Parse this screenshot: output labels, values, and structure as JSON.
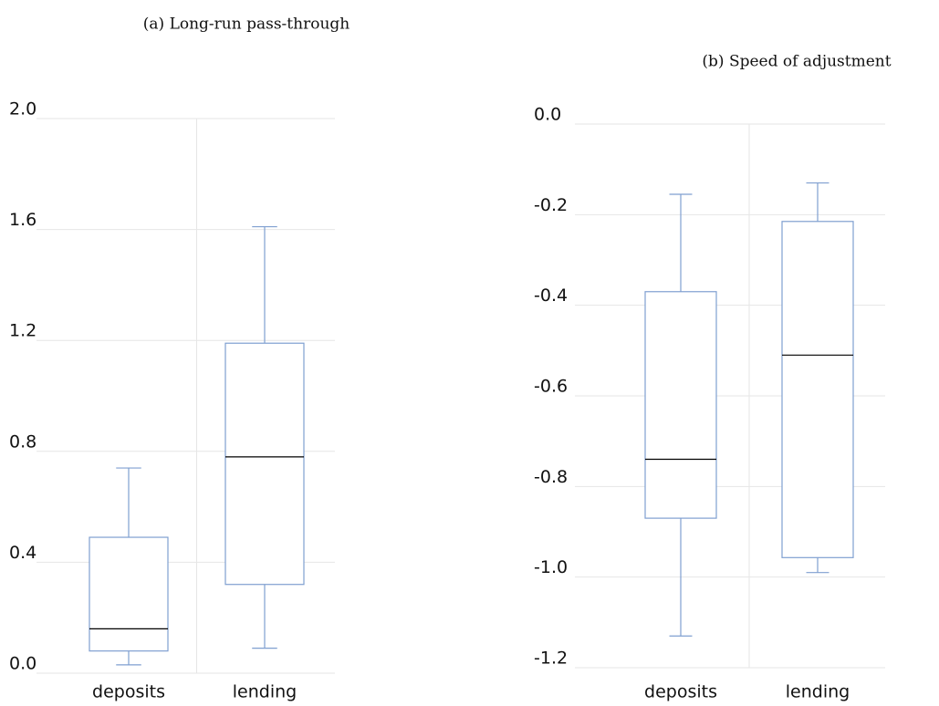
{
  "chart_data": [
    {
      "type": "box",
      "title": "(a) Long-run pass-through",
      "categories": [
        "deposits",
        "lending"
      ],
      "min": [
        0.03,
        0.09
      ],
      "q1": [
        0.08,
        0.32
      ],
      "median": [
        0.16,
        0.78
      ],
      "q3": [
        0.49,
        1.19
      ],
      "max": [
        0.74,
        1.61
      ],
      "color": "#7f9fd0",
      "median_color": "#000000",
      "ylim": [
        0,
        2
      ],
      "yticks": [
        {
          "value": 0,
          "label": "0.0"
        },
        0.4,
        0.8,
        1.2,
        1.6,
        {
          "value": 2,
          "label": "2.0"
        }
      ],
      "grid": true
    },
    {
      "type": "box",
      "title": "(b) Speed of adjustment",
      "categories": [
        "deposits",
        "lending"
      ],
      "min": [
        -1.13,
        -0.99
      ],
      "q1": [
        -0.87,
        -0.957
      ],
      "median": [
        -0.74,
        -0.51
      ],
      "q3": [
        -0.37,
        -0.215
      ],
      "max": [
        -0.155,
        -0.13
      ],
      "color": "#7f9fd0",
      "median_color": "#000000",
      "ylim": [
        -1.2,
        0
      ],
      "yticks": [
        {
          "value": 0,
          "label": "0.0"
        },
        -0.2,
        -0.4,
        -0.6,
        {
          "value": -0.8,
          "label": "-0.8"
        },
        {
          "value": -1,
          "label": "-1.0"
        },
        -1.2
      ],
      "grid": true
    }
  ]
}
